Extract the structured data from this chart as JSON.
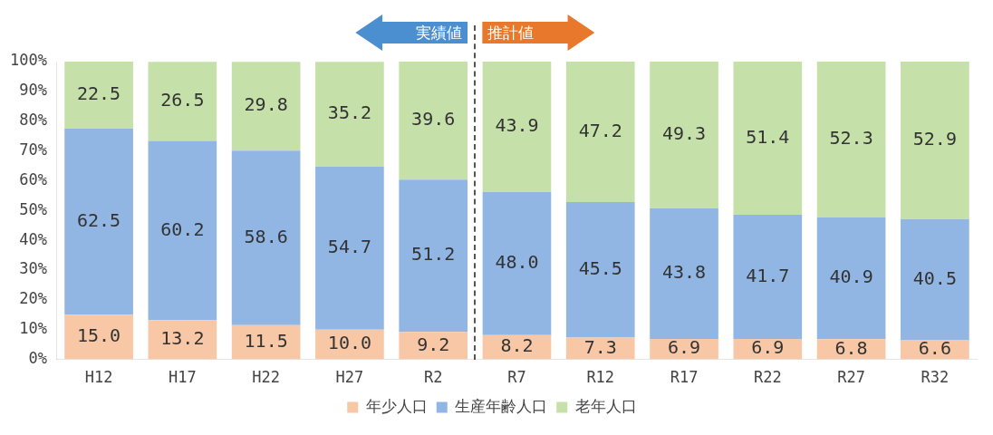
{
  "chart_data": {
    "type": "bar",
    "stacked": true,
    "categories": [
      "H12",
      "H17",
      "H22",
      "H27",
      "R2",
      "R7",
      "R12",
      "R17",
      "R22",
      "R27",
      "R32"
    ],
    "series": [
      {
        "name": "年少人口",
        "color": "#f7c7a6",
        "values": [
          15.0,
          13.2,
          11.5,
          10.0,
          9.2,
          8.2,
          7.3,
          6.9,
          6.9,
          6.8,
          6.6
        ],
        "value_labels": [
          "15.0",
          "13.2",
          "11.5",
          "10.0",
          "9.2",
          "8.2",
          "7.3",
          "6.9",
          "6.9",
          "6.8",
          "6.6"
        ]
      },
      {
        "name": "生産年齢人口",
        "color": "#91b6e4",
        "values": [
          62.5,
          60.2,
          58.6,
          54.7,
          51.2,
          48.0,
          45.5,
          43.8,
          41.7,
          40.9,
          40.5
        ],
        "value_labels": [
          "62.5",
          "60.2",
          "58.6",
          "54.7",
          "51.2",
          "48.0",
          "45.5",
          "43.8",
          "41.7",
          "40.9",
          "40.5"
        ]
      },
      {
        "name": "老年人口",
        "color": "#c6e0a9",
        "values": [
          22.5,
          26.5,
          29.8,
          35.2,
          39.6,
          43.9,
          47.2,
          49.3,
          51.4,
          52.3,
          52.9
        ],
        "value_labels": [
          "22.5",
          "26.5",
          "29.8",
          "35.2",
          "39.6",
          "43.9",
          "47.2",
          "49.3",
          "51.4",
          "52.3",
          "52.9"
        ]
      }
    ],
    "ylim": [
      0,
      100
    ],
    "yticks": [
      {
        "value": 0,
        "label": "0%"
      },
      {
        "value": 10,
        "label": "10%"
      },
      {
        "value": 20,
        "label": "20%"
      },
      {
        "value": 30,
        "label": "30%"
      },
      {
        "value": 40,
        "label": "40%"
      },
      {
        "value": 50,
        "label": "50%"
      },
      {
        "value": 60,
        "label": "60%"
      },
      {
        "value": 70,
        "label": "70%"
      },
      {
        "value": 80,
        "label": "80%"
      },
      {
        "value": 90,
        "label": "90%"
      },
      {
        "value": 100,
        "label": "100%"
      }
    ],
    "legend": "bottom",
    "grid": false,
    "annotations": [
      "実績値",
      "推計値"
    ]
  }
}
